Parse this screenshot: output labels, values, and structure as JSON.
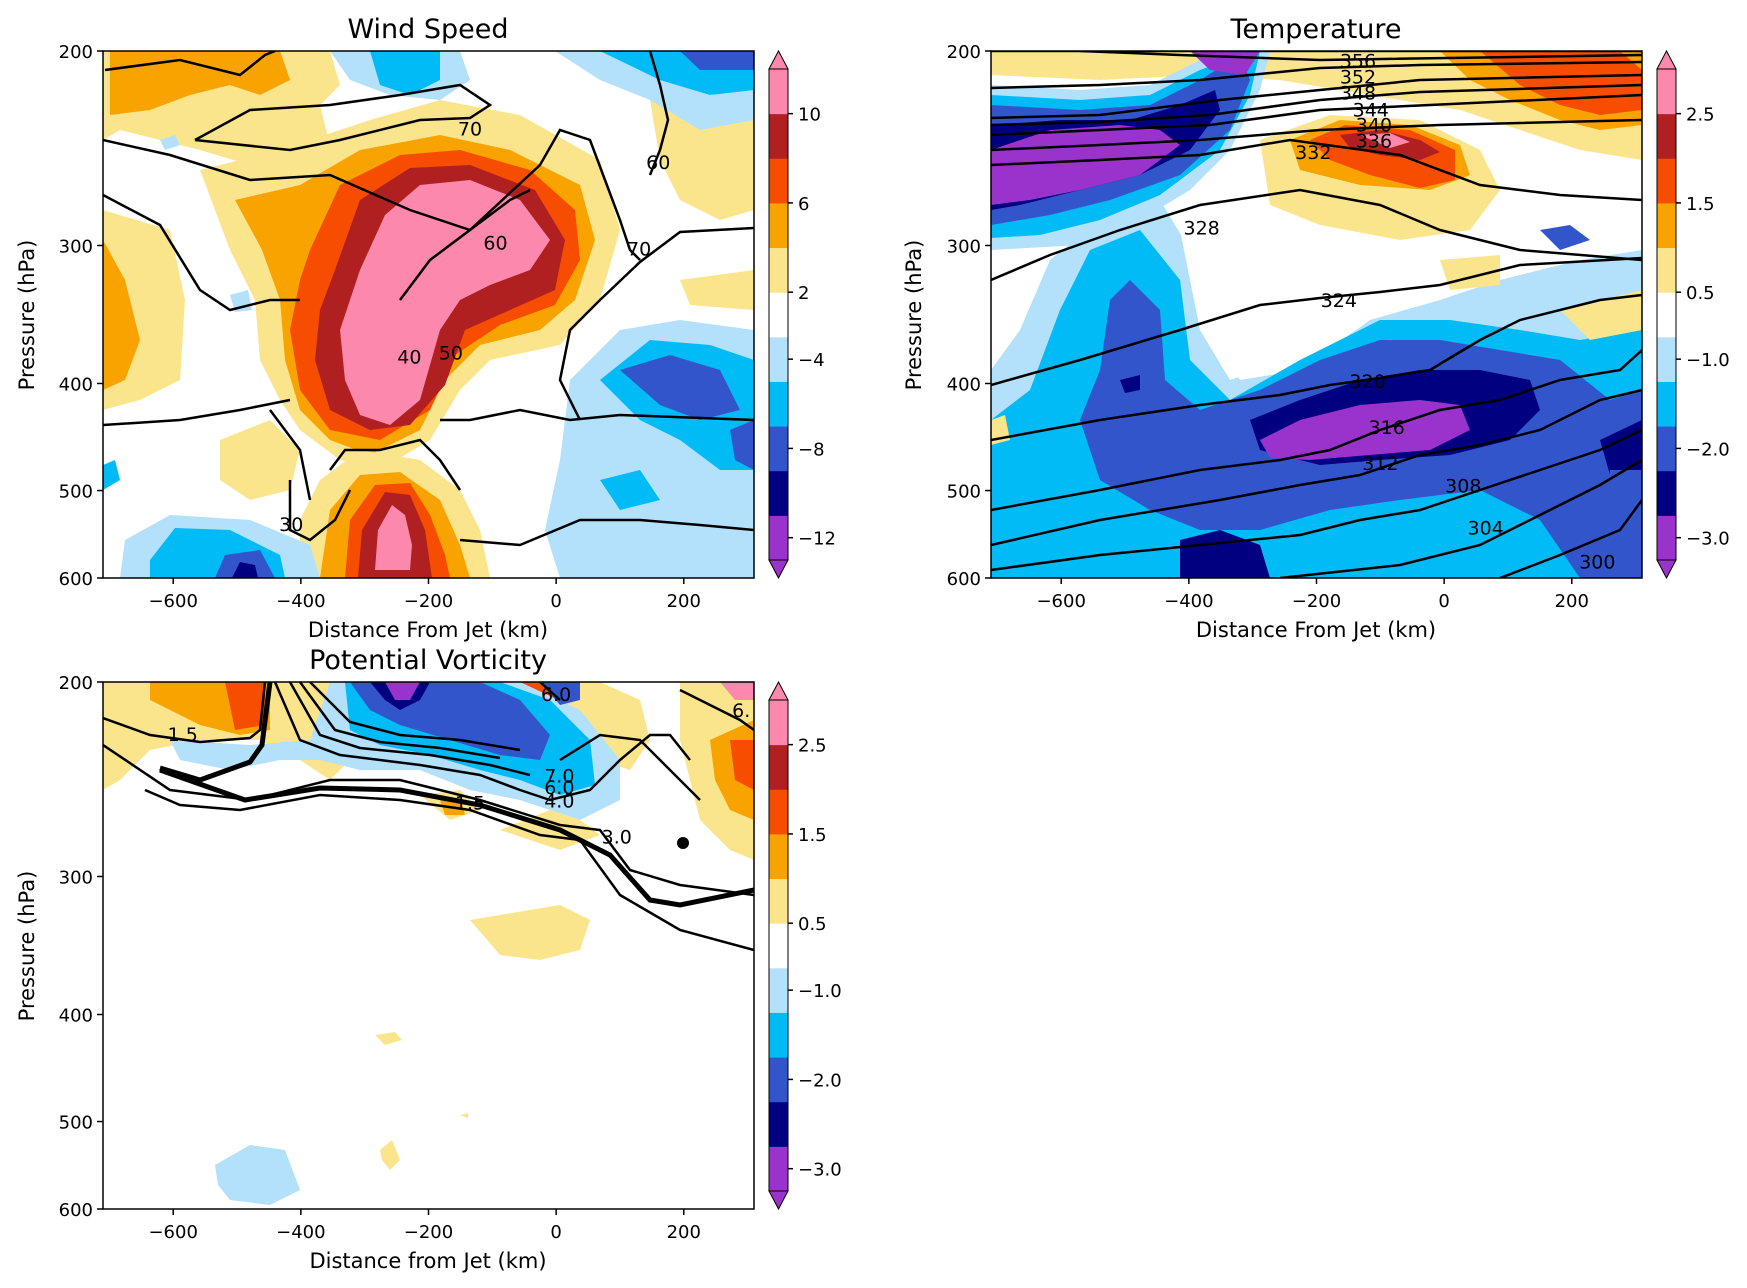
{
  "chart_data": [
    {
      "type": "heatmap",
      "title": "Wind Speed",
      "xlabel": "Distance From Jet (km)",
      "ylabel": "Pressure (hPa)",
      "xlim": [
        -710,
        310
      ],
      "ylim": [
        600,
        200
      ],
      "y_scale": "log",
      "xticks": [
        -600,
        -400,
        -200,
        0,
        200
      ],
      "yticks": [
        200,
        300,
        400,
        500,
        600
      ],
      "colorbar": {
        "tick_values": [
          -12,
          -8,
          -4,
          2,
          6,
          10
        ],
        "tick_labels": [
          "−12",
          "−8",
          "−4",
          "2",
          "6",
          "10"
        ],
        "extend": "both"
      },
      "contour_labels": [
        {
          "text": "70",
          "x": -135,
          "y": 235
        },
        {
          "text": "60",
          "x": 160,
          "y": 252
        },
        {
          "text": "70",
          "x": 130,
          "y": 302
        },
        {
          "text": "60",
          "x": -95,
          "y": 298
        },
        {
          "text": "40",
          "x": -230,
          "y": 378
        },
        {
          "text": "50",
          "x": -165,
          "y": 375
        },
        {
          "text": "30",
          "x": -415,
          "y": 536
        }
      ]
    },
    {
      "type": "heatmap",
      "title": "Temperature",
      "xlabel": "Distance From Jet (km)",
      "ylabel": "Pressure (hPa)",
      "xlim": [
        -710,
        310
      ],
      "ylim": [
        600,
        200
      ],
      "y_scale": "log",
      "xticks": [
        -600,
        -400,
        -200,
        0,
        200
      ],
      "yticks": [
        200,
        300,
        400,
        500,
        600
      ],
      "colorbar": {
        "tick_values": [
          -3.0,
          -2.0,
          -1.0,
          0.5,
          1.5,
          2.5
        ],
        "tick_labels": [
          "−3.0",
          "−2.0",
          "−1.0",
          "0.5",
          "1.5",
          "2.5"
        ],
        "extend": "both"
      },
      "contour_labels": [
        {
          "text": "356",
          "x": -135,
          "y": 204
        },
        {
          "text": "352",
          "x": -135,
          "y": 211
        },
        {
          "text": "348",
          "x": -135,
          "y": 218
        },
        {
          "text": "344",
          "x": -115,
          "y": 226
        },
        {
          "text": "340",
          "x": -110,
          "y": 233
        },
        {
          "text": "336",
          "x": -110,
          "y": 241
        },
        {
          "text": "332",
          "x": -205,
          "y": 247
        },
        {
          "text": "328",
          "x": -380,
          "y": 289
        },
        {
          "text": "324",
          "x": -165,
          "y": 336
        },
        {
          "text": "320",
          "x": -120,
          "y": 398
        },
        {
          "text": "316",
          "x": -90,
          "y": 438
        },
        {
          "text": "312",
          "x": -100,
          "y": 472
        },
        {
          "text": "308",
          "x": 30,
          "y": 495
        },
        {
          "text": "304",
          "x": 65,
          "y": 540
        },
        {
          "text": "300",
          "x": 240,
          "y": 580
        }
      ]
    },
    {
      "type": "heatmap",
      "title": "Potential Vorticity",
      "xlabel": "Distance from Jet (km)",
      "ylabel": "Pressure (hPa)",
      "xlim": [
        -710,
        310
      ],
      "ylim": [
        600,
        200
      ],
      "y_scale": "log",
      "xticks": [
        -600,
        -400,
        -200,
        0,
        200
      ],
      "yticks": [
        200,
        300,
        400,
        500,
        600
      ],
      "colorbar": {
        "tick_values": [
          -3.0,
          -2.0,
          -1.0,
          0.5,
          1.5,
          2.5
        ],
        "tick_labels": [
          "−3.0",
          "−2.0",
          "−1.0",
          "0.5",
          "1.5",
          "2.5"
        ],
        "extend": "both"
      },
      "contour_labels": [
        {
          "text": "6.0",
          "x": 0,
          "y": 205
        },
        {
          "text": "6.",
          "x": 290,
          "y": 212
        },
        {
          "text": "1.5",
          "x": -585,
          "y": 223
        },
        {
          "text": "7.0",
          "x": 5,
          "y": 243
        },
        {
          "text": "6.0",
          "x": 5,
          "y": 249
        },
        {
          "text": "4.0",
          "x": 5,
          "y": 256
        },
        {
          "text": "1.5",
          "x": -135,
          "y": 257
        },
        {
          "text": "3.0",
          "x": 95,
          "y": 276
        }
      ]
    }
  ],
  "colors": {
    "purple": "#9933cc",
    "navy": "#000080",
    "royal": "#3355cc",
    "cyan": "#00bbf5",
    "lightblue": "#b3e0fa",
    "white": "#ffffff",
    "lightyellow": "#fbe58c",
    "orange": "#f9a300",
    "redorange": "#f74d00",
    "darkred": "#b02020",
    "pink": "#fc88ad"
  }
}
